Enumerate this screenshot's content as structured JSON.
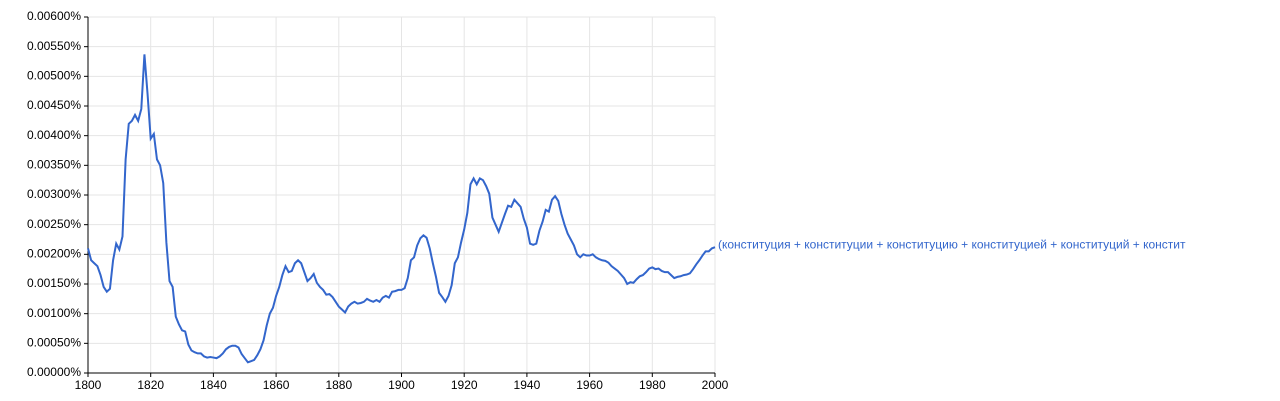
{
  "chart_data": {
    "type": "line",
    "series": [
      {
        "name": "(конституция + конституции + конституцию + конституцией + конституций + констит",
        "color": "#3366cc",
        "values": [
          0.0021,
          0.0019,
          0.00185,
          0.0018,
          0.00165,
          0.00145,
          0.00137,
          0.00142,
          0.0019,
          0.00218,
          0.00208,
          0.0023,
          0.0036,
          0.0042,
          0.00425,
          0.00435,
          0.00425,
          0.00445,
          0.00537,
          0.0047,
          0.00395,
          0.00403,
          0.0036,
          0.0035,
          0.0032,
          0.0022,
          0.00155,
          0.00145,
          0.00095,
          0.00082,
          0.00072,
          0.0007,
          0.00048,
          0.00038,
          0.00035,
          0.00033,
          0.00033,
          0.00028,
          0.00026,
          0.00027,
          0.00026,
          0.00025,
          0.00028,
          0.00033,
          0.0004,
          0.00044,
          0.00046,
          0.00046,
          0.00043,
          0.00032,
          0.00025,
          0.00018,
          0.0002,
          0.00022,
          0.0003,
          0.0004,
          0.00055,
          0.0008,
          0.001,
          0.0011,
          0.0013,
          0.00145,
          0.00165,
          0.0018,
          0.0017,
          0.00172,
          0.00185,
          0.0019,
          0.00185,
          0.0017,
          0.00155,
          0.0016,
          0.00167,
          0.00152,
          0.00145,
          0.0014,
          0.00132,
          0.00133,
          0.00128,
          0.0012,
          0.00112,
          0.00107,
          0.00102,
          0.00112,
          0.00117,
          0.0012,
          0.00117,
          0.00118,
          0.0012,
          0.00125,
          0.00122,
          0.0012,
          0.00123,
          0.0012,
          0.00127,
          0.0013,
          0.00127,
          0.00137,
          0.00138,
          0.0014,
          0.0014,
          0.00143,
          0.0016,
          0.0019,
          0.00195,
          0.00215,
          0.00227,
          0.00232,
          0.00228,
          0.0021,
          0.00185,
          0.00162,
          0.00135,
          0.00128,
          0.0012,
          0.0013,
          0.00148,
          0.00185,
          0.00195,
          0.0022,
          0.00242,
          0.0027,
          0.00318,
          0.00328,
          0.00318,
          0.00328,
          0.00325,
          0.00315,
          0.00302,
          0.00262,
          0.0025,
          0.00238,
          0.00253,
          0.00268,
          0.00282,
          0.0028,
          0.00292,
          0.00286,
          0.0028,
          0.0026,
          0.00245,
          0.00218,
          0.00216,
          0.00218,
          0.0024,
          0.00255,
          0.00275,
          0.00272,
          0.00292,
          0.00298,
          0.0029,
          0.00268,
          0.0025,
          0.00235,
          0.00225,
          0.00215,
          0.002,
          0.00195,
          0.002,
          0.00198,
          0.00198,
          0.002,
          0.00195,
          0.00192,
          0.0019,
          0.00189,
          0.00186,
          0.0018,
          0.00176,
          0.00172,
          0.00166,
          0.0016,
          0.0015,
          0.00153,
          0.00152,
          0.00158,
          0.00163,
          0.00165,
          0.0017,
          0.00176,
          0.00178,
          0.00175,
          0.00176,
          0.00172,
          0.0017,
          0.0017,
          0.00165,
          0.0016,
          0.00162,
          0.00163,
          0.00165,
          0.00166,
          0.00168,
          0.00175,
          0.00183,
          0.0019,
          0.00198,
          0.00205,
          0.00205,
          0.0021,
          0.00212
        ]
      }
    ],
    "x": [
      1800,
      1801,
      1802,
      1803,
      1804,
      1805,
      1806,
      1807,
      1808,
      1809,
      1810,
      1811,
      1812,
      1813,
      1814,
      1815,
      1816,
      1817,
      1818,
      1819,
      1820,
      1821,
      1822,
      1823,
      1824,
      1825,
      1826,
      1827,
      1828,
      1829,
      1830,
      1831,
      1832,
      1833,
      1834,
      1835,
      1836,
      1837,
      1838,
      1839,
      1840,
      1841,
      1842,
      1843,
      1844,
      1845,
      1846,
      1847,
      1848,
      1849,
      1850,
      1851,
      1852,
      1853,
      1854,
      1855,
      1856,
      1857,
      1858,
      1859,
      1860,
      1861,
      1862,
      1863,
      1864,
      1865,
      1866,
      1867,
      1868,
      1869,
      1870,
      1871,
      1872,
      1873,
      1874,
      1875,
      1876,
      1877,
      1878,
      1879,
      1880,
      1881,
      1882,
      1883,
      1884,
      1885,
      1886,
      1887,
      1888,
      1889,
      1890,
      1891,
      1892,
      1893,
      1894,
      1895,
      1896,
      1897,
      1898,
      1899,
      1900,
      1901,
      1902,
      1903,
      1904,
      1905,
      1906,
      1907,
      1908,
      1909,
      1910,
      1911,
      1912,
      1913,
      1914,
      1915,
      1916,
      1917,
      1918,
      1919,
      1920,
      1921,
      1922,
      1923,
      1924,
      1925,
      1926,
      1927,
      1928,
      1929,
      1930,
      1931,
      1932,
      1933,
      1934,
      1935,
      1936,
      1937,
      1938,
      1939,
      1940,
      1941,
      1942,
      1943,
      1944,
      1945,
      1946,
      1947,
      1948,
      1949,
      1950,
      1951,
      1952,
      1953,
      1954,
      1955,
      1956,
      1957,
      1958,
      1959,
      1960,
      1961,
      1962,
      1963,
      1964,
      1965,
      1966,
      1967,
      1968,
      1969,
      1970,
      1971,
      1972,
      1973,
      1974,
      1975,
      1976,
      1977,
      1978,
      1979,
      1980,
      1981,
      1982,
      1983,
      1984,
      1985,
      1986,
      1987,
      1988,
      1989,
      1990,
      1991,
      1992,
      1993,
      1994,
      1995,
      1996,
      1997,
      1998,
      1999,
      2000
    ],
    "xlim": [
      1800,
      2000
    ],
    "xticks": [
      1800,
      1820,
      1840,
      1860,
      1880,
      1900,
      1920,
      1940,
      1960,
      1980,
      2000
    ],
    "ylim": [
      0,
      0.006
    ],
    "yticks": [
      {
        "value": 0,
        "label": "0.00000%"
      },
      {
        "value": 0.0005,
        "label": "0.00050%"
      },
      {
        "value": 0.001,
        "label": "0.00100%"
      },
      {
        "value": 0.0015,
        "label": "0.00150%"
      },
      {
        "value": 0.002,
        "label": "0.00200%"
      },
      {
        "value": 0.0025,
        "label": "0.00250%"
      },
      {
        "value": 0.003,
        "label": "0.00300%"
      },
      {
        "value": 0.0035,
        "label": "0.00350%"
      },
      {
        "value": 0.004,
        "label": "0.00400%"
      },
      {
        "value": 0.0045,
        "label": "0.00450%"
      },
      {
        "value": 0.005,
        "label": "0.00500%"
      },
      {
        "value": 0.0055,
        "label": "0.00550%"
      },
      {
        "value": 0.006,
        "label": "0.00600%"
      }
    ],
    "grid": true
  }
}
